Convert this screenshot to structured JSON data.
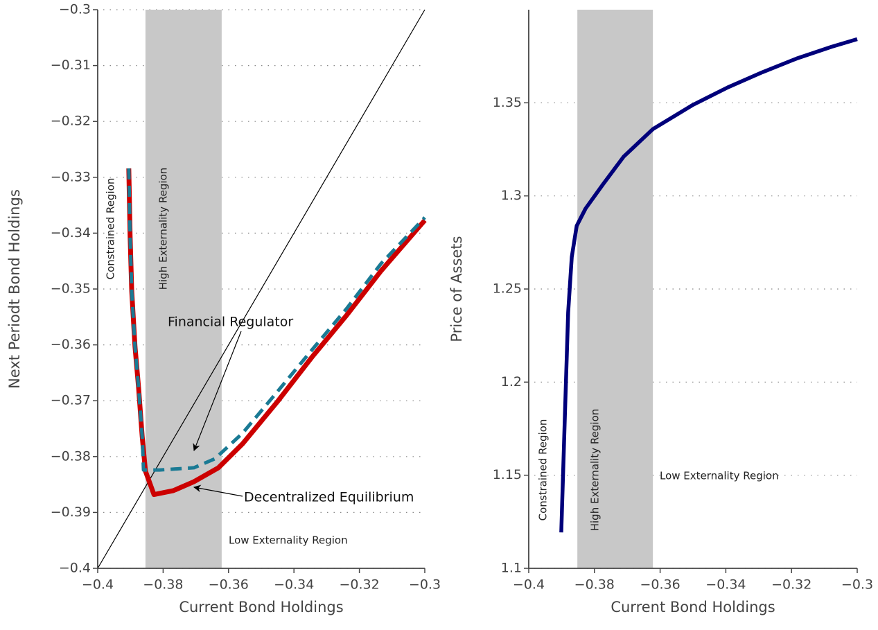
{
  "chart_data": [
    {
      "type": "line",
      "xlabel": "Current Bond Holdings",
      "ylabel": "Next Periodt Bond Holdings",
      "xlim": [
        -0.4,
        -0.3
      ],
      "ylim": [
        -0.4,
        -0.3
      ],
      "xticks": [
        {
          "value": -0.4,
          "label": "−0.4"
        },
        {
          "value": -0.38,
          "label": "−0.38"
        },
        {
          "value": -0.36,
          "label": "−0.36"
        },
        {
          "value": -0.34,
          "label": "−0.34"
        },
        {
          "value": -0.32,
          "label": "−0.32"
        },
        {
          "value": -0.3,
          "label": "−0.3"
        }
      ],
      "yticks": [
        {
          "value": -0.4,
          "label": "−0.4"
        },
        {
          "value": -0.39,
          "label": "−0.39"
        },
        {
          "value": -0.38,
          "label": "−0.38"
        },
        {
          "value": -0.37,
          "label": "−0.37"
        },
        {
          "value": -0.36,
          "label": "−0.36"
        },
        {
          "value": -0.35,
          "label": "−0.35"
        },
        {
          "value": -0.34,
          "label": "−0.34"
        },
        {
          "value": -0.33,
          "label": "−0.33"
        },
        {
          "value": -0.32,
          "label": "−0.32"
        },
        {
          "value": -0.31,
          "label": "−0.31"
        },
        {
          "value": -0.3,
          "label": "−0.3"
        }
      ],
      "grid": true,
      "shade": {
        "x": [
          -0.3854,
          -0.3621
        ],
        "color": "#c8c8c8"
      },
      "region_labels": [
        "Constrained Region",
        "High Externality Region",
        "Low Externality Region"
      ],
      "series": [
        {
          "color": "#000000",
          "x": [
            -0.4,
            -0.3
          ],
          "values": [
            -0.4,
            -0.3
          ]
        },
        {
          "name": "Decentralized Equilibrium",
          "color": "#cc0000",
          "x": [
            -0.3905,
            -0.3901,
            -0.3896,
            -0.3886,
            -0.3875,
            -0.3864,
            -0.3854,
            -0.3828,
            -0.3769,
            -0.3706,
            -0.3631,
            -0.3557,
            -0.3451,
            -0.3345,
            -0.3239,
            -0.3133,
            -0.3
          ],
          "values": [
            -0.3284,
            -0.3404,
            -0.3504,
            -0.3603,
            -0.3677,
            -0.3764,
            -0.3826,
            -0.3868,
            -0.3861,
            -0.3845,
            -0.382,
            -0.3777,
            -0.3702,
            -0.3622,
            -0.3547,
            -0.3467,
            -0.3377
          ]
        },
        {
          "name": "Financial Regulator",
          "color": "#1a7a94",
          "dashed": true,
          "x": [
            -0.3905,
            -0.3901,
            -0.3896,
            -0.3886,
            -0.3875,
            -0.3864,
            -0.386,
            -0.3811,
            -0.3706,
            -0.3642,
            -0.3557,
            -0.3451,
            -0.3345,
            -0.3239,
            -0.3133,
            -0.3
          ],
          "values": [
            -0.3284,
            -0.3404,
            -0.3504,
            -0.3603,
            -0.3677,
            -0.3764,
            -0.3824,
            -0.3824,
            -0.382,
            -0.3804,
            -0.3758,
            -0.3684,
            -0.3609,
            -0.3535,
            -0.3454,
            -0.3372
          ]
        }
      ]
    },
    {
      "type": "line",
      "xlabel": "Current Bond Holdings",
      "ylabel": "Price of Assets",
      "xlim": [
        -0.4,
        -0.3
      ],
      "ylim": [
        1.1,
        1.4
      ],
      "xticks": [
        {
          "value": -0.4,
          "label": "−0.4"
        },
        {
          "value": -0.38,
          "label": "−0.38"
        },
        {
          "value": -0.36,
          "label": "−0.36"
        },
        {
          "value": -0.34,
          "label": "−0.34"
        },
        {
          "value": -0.32,
          "label": "−0.32"
        },
        {
          "value": -0.3,
          "label": "−0.3"
        }
      ],
      "yticks": [
        1.1,
        1.15,
        1.2,
        1.25,
        1.3,
        1.35
      ],
      "grid": true,
      "shade": {
        "x": [
          -0.3852,
          -0.3622
        ],
        "color": "#c8c8c8"
      },
      "region_labels": [
        "Constrained Region",
        "High Externality Region",
        "Low Externality Region"
      ],
      "series": [
        {
          "color": "#00007a",
          "x": [
            -0.3901,
            -0.389,
            -0.388,
            -0.3869,
            -0.3854,
            -0.3827,
            -0.3774,
            -0.3711,
            -0.3622,
            -0.35,
            -0.3395,
            -0.3289,
            -0.3184,
            -0.3078,
            -0.3
          ],
          "values": [
            1.1193,
            1.1817,
            1.2374,
            1.2672,
            1.2839,
            1.2932,
            1.3062,
            1.3211,
            1.3359,
            1.3489,
            1.3582,
            1.3664,
            1.3738,
            1.3801,
            1.3842
          ]
        }
      ]
    }
  ]
}
